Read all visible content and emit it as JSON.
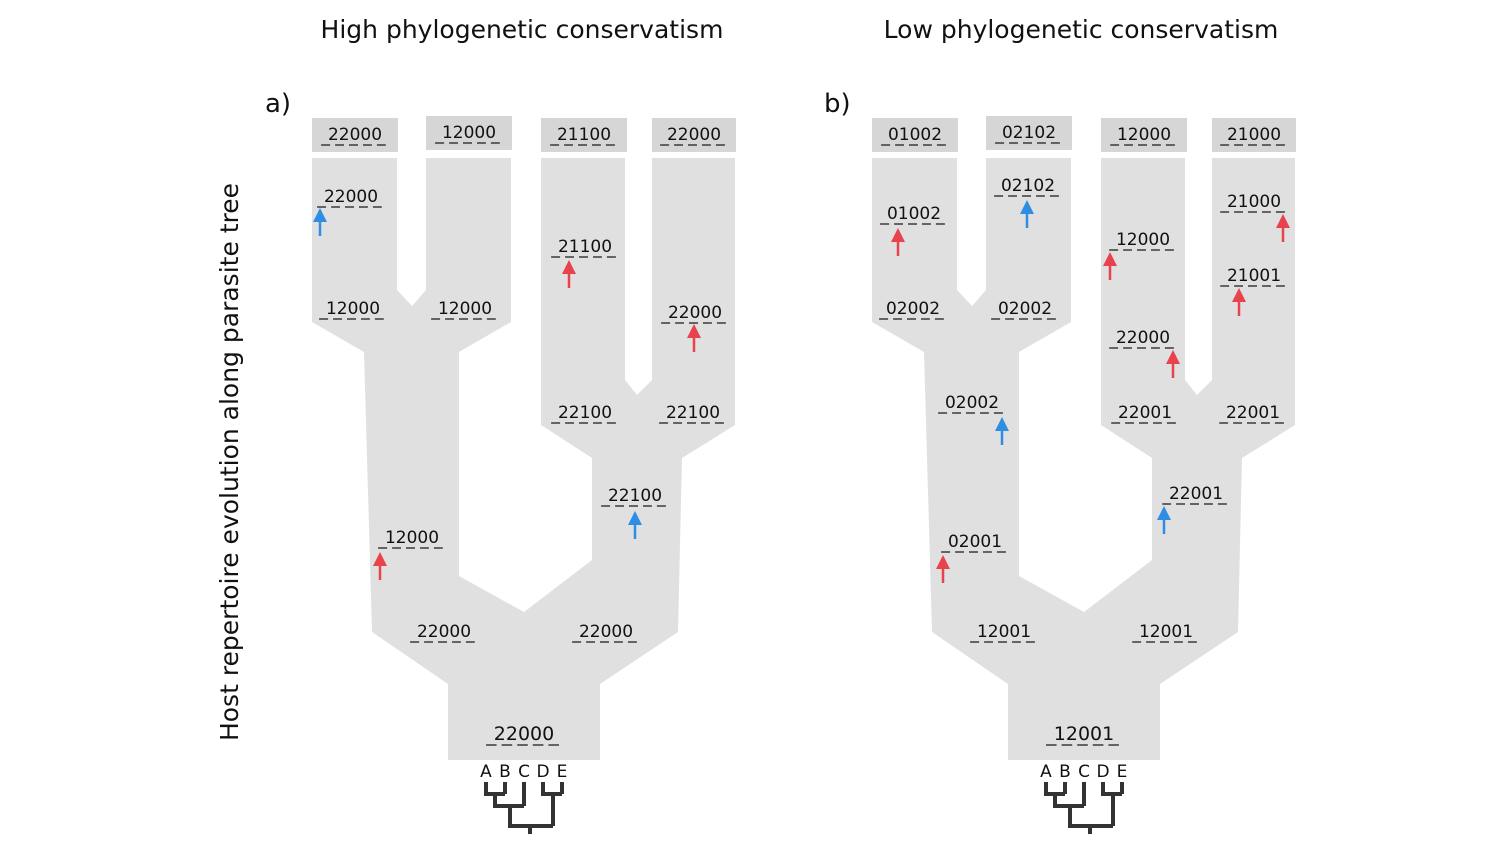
{
  "y_axis_label": "Host repertoire evolution along parasite tree",
  "colors": {
    "branch_fill": "#e0e0e0",
    "tip_box": "#d6d6d6",
    "gain_arrow": "#e8434c",
    "loss_arrow": "#2f8de4",
    "host_tree": "#333333"
  },
  "host_tree_leaves": [
    "A",
    "B",
    "C",
    "D",
    "E"
  ],
  "panels": [
    {
      "title": "High phylogenetic conservatism",
      "label": "a)",
      "tips": [
        "22000",
        "12000",
        "21100",
        "22000"
      ],
      "root": "22000",
      "states": {
        "left_node": "22000",
        "right_node": "22000",
        "left_mid": "12000",
        "right_mid": "22100",
        "leaf1_base": "12000",
        "leaf2_base": "12000",
        "leaf3_base": "22100",
        "leaf4_base": "22100",
        "leaf1_top": "22000",
        "leaf3_top": "21100",
        "leaf4_top": "22000"
      }
    },
    {
      "title": "Low phylogenetic conservatism",
      "label": "b)",
      "tips": [
        "01002",
        "02102",
        "12000",
        "21000"
      ],
      "root": "12001",
      "states": {
        "left_node": "12001",
        "right_node": "12001",
        "left_low": "02001",
        "left_mid": "02002",
        "right_mid": "22001",
        "leaf1_base": "02002",
        "leaf2_base": "02002",
        "leaf3_base": "22001",
        "leaf4_base": "22001",
        "leaf1_top": "01002",
        "leaf2_top": "02102",
        "leaf3_mid": "22000",
        "leaf3_top": "12000",
        "leaf4_mid": "21001",
        "leaf4_top": "21000"
      }
    }
  ]
}
